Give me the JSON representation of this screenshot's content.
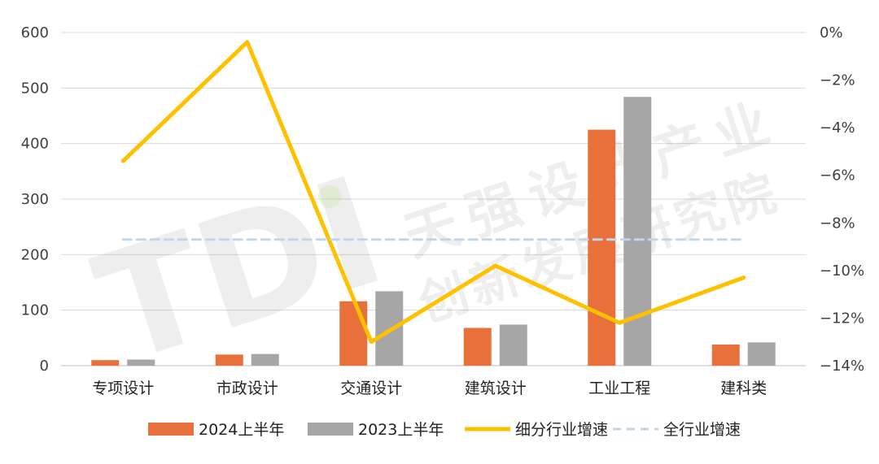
{
  "watermark": {
    "logo": "TDI",
    "line1": "天强设计产业",
    "line2": "创新发展研究院"
  },
  "chart_data": {
    "type": "bar",
    "categories": [
      "专项设计",
      "市政设计",
      "交通设计",
      "建筑设计",
      "工业工程",
      "建科类"
    ],
    "series": [
      {
        "name": "2024上半年",
        "type": "bar",
        "axis": "left",
        "color": "#E8703A",
        "values": [
          10,
          20,
          116,
          68,
          425,
          38
        ]
      },
      {
        "name": "2023上半年",
        "type": "bar",
        "axis": "left",
        "color": "#A6A6A6",
        "values": [
          11,
          21,
          134,
          74,
          484,
          42
        ]
      },
      {
        "name": "细分行业增速",
        "type": "line",
        "axis": "right",
        "color": "#FFC000",
        "values": [
          -5.4,
          -0.4,
          -13.0,
          -9.8,
          -12.2,
          -10.3
        ]
      },
      {
        "name": "全行业增速",
        "type": "dashed-line",
        "axis": "right",
        "color": "#BDD7EE",
        "values": [
          -8.7,
          -8.7,
          -8.7,
          -8.7,
          -8.7,
          -8.7
        ]
      }
    ],
    "y_left": {
      "ylim": [
        0,
        600
      ],
      "ticks": [
        "0",
        "100",
        "200",
        "300",
        "400",
        "500",
        "600"
      ]
    },
    "y_right": {
      "ylim": [
        -14,
        0
      ],
      "ticks": [
        "−14%",
        "−12%",
        "−10%",
        "−8%",
        "−6%",
        "−4%",
        "−2%",
        "0%"
      ]
    },
    "grid": true,
    "legend_position": "bottom"
  }
}
